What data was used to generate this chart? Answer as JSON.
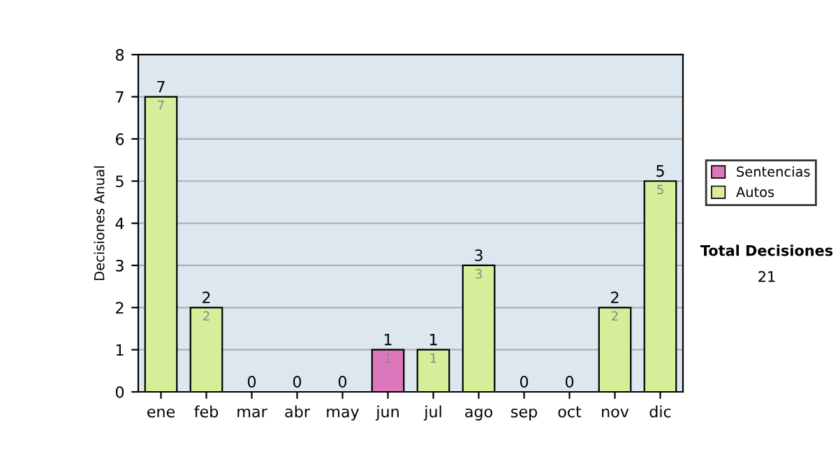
{
  "chart_data": {
    "type": "bar",
    "stacked": true,
    "ylabel": "Decisiones Anual",
    "categories": [
      "ene",
      "feb",
      "mar",
      "abr",
      "may",
      "jun",
      "jul",
      "ago",
      "sep",
      "oct",
      "nov",
      "dic"
    ],
    "series": [
      {
        "name": "Sentencias",
        "color": "#dd77bb",
        "values": [
          0,
          0,
          0,
          0,
          0,
          1,
          0,
          0,
          0,
          0,
          0,
          0
        ],
        "value_labels": [
          null,
          null,
          null,
          null,
          null,
          "1",
          null,
          null,
          null,
          null,
          null,
          null
        ]
      },
      {
        "name": "Autos",
        "color": "#d6ee9a",
        "values": [
          7,
          2,
          0,
          0,
          0,
          0,
          1,
          3,
          0,
          0,
          2,
          5
        ],
        "value_labels": [
          "7",
          "2",
          null,
          null,
          null,
          null,
          "1",
          "3",
          null,
          null,
          "2",
          "5"
        ]
      }
    ],
    "totals": [
      "7",
      "2",
      "0",
      "0",
      "0",
      "1",
      "1",
      "3",
      "0",
      "0",
      "2",
      "5"
    ],
    "ylim": [
      0,
      8
    ],
    "yticks": [
      0,
      1,
      2,
      3,
      4,
      5,
      6,
      7,
      8
    ],
    "grid": "y",
    "legend": "right",
    "annotations": [
      "Total Decisiones",
      "21"
    ]
  }
}
